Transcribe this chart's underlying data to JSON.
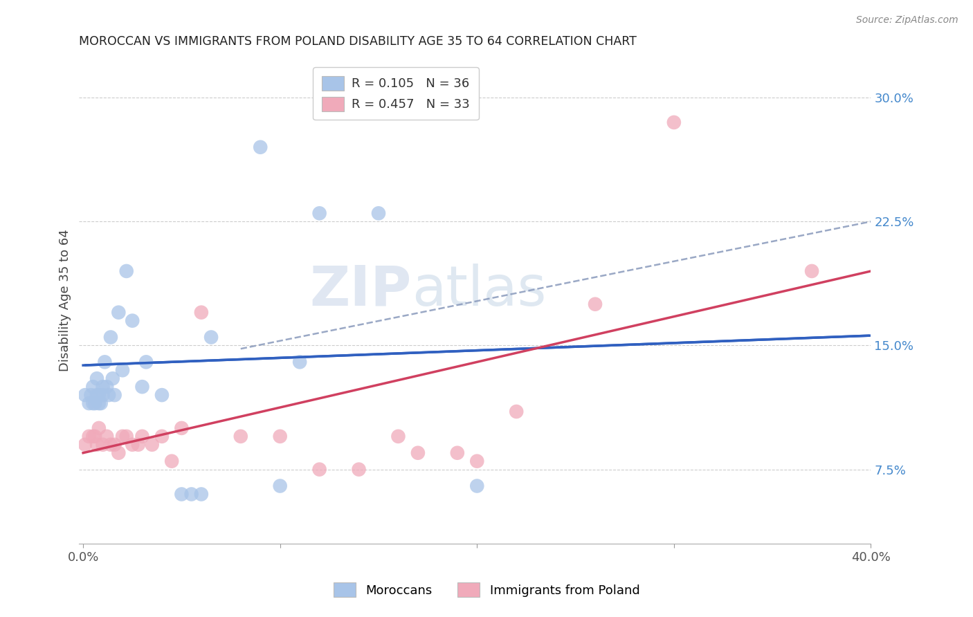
{
  "title": "MOROCCAN VS IMMIGRANTS FROM POLAND DISABILITY AGE 35 TO 64 CORRELATION CHART",
  "source": "Source: ZipAtlas.com",
  "ylabel": "Disability Age 35 to 64",
  "y_ticks_right": [
    0.075,
    0.15,
    0.225,
    0.3
  ],
  "y_tick_labels_right": [
    "7.5%",
    "15.0%",
    "22.5%",
    "30.0%"
  ],
  "xlim": [
    -0.002,
    0.4
  ],
  "ylim": [
    0.03,
    0.325
  ],
  "legend_label1": "Moroccans",
  "legend_label2": "Immigrants from Poland",
  "watermark_top": "ZIP",
  "watermark_bot": "atlas",
  "blue_color": "#a8c4e8",
  "pink_color": "#f0aaba",
  "blue_line_color": "#3060c0",
  "pink_line_color": "#d04060",
  "dashed_line_color": "#8899bb",
  "moroccan_x": [
    0.001,
    0.003,
    0.004,
    0.005,
    0.005,
    0.006,
    0.007,
    0.007,
    0.008,
    0.008,
    0.009,
    0.01,
    0.01,
    0.011,
    0.012,
    0.013,
    0.014,
    0.015,
    0.016,
    0.018,
    0.02,
    0.022,
    0.025,
    0.03,
    0.032,
    0.04,
    0.05,
    0.055,
    0.06,
    0.065,
    0.09,
    0.1,
    0.11,
    0.12,
    0.15,
    0.2
  ],
  "moroccan_y": [
    0.12,
    0.115,
    0.12,
    0.115,
    0.125,
    0.115,
    0.12,
    0.13,
    0.115,
    0.12,
    0.115,
    0.12,
    0.125,
    0.14,
    0.125,
    0.12,
    0.155,
    0.13,
    0.12,
    0.17,
    0.135,
    0.195,
    0.165,
    0.125,
    0.14,
    0.12,
    0.06,
    0.06,
    0.06,
    0.155,
    0.27,
    0.065,
    0.14,
    0.23,
    0.23,
    0.065
  ],
  "poland_x": [
    0.001,
    0.003,
    0.005,
    0.006,
    0.007,
    0.008,
    0.01,
    0.012,
    0.014,
    0.016,
    0.018,
    0.02,
    0.022,
    0.025,
    0.028,
    0.03,
    0.035,
    0.04,
    0.045,
    0.05,
    0.06,
    0.08,
    0.1,
    0.12,
    0.14,
    0.16,
    0.17,
    0.19,
    0.2,
    0.22,
    0.26,
    0.3,
    0.37
  ],
  "poland_y": [
    0.09,
    0.095,
    0.095,
    0.095,
    0.09,
    0.1,
    0.09,
    0.095,
    0.09,
    0.09,
    0.085,
    0.095,
    0.095,
    0.09,
    0.09,
    0.095,
    0.09,
    0.095,
    0.08,
    0.1,
    0.17,
    0.095,
    0.095,
    0.075,
    0.075,
    0.095,
    0.085,
    0.085,
    0.08,
    0.11,
    0.175,
    0.285,
    0.195
  ],
  "blue_line_x0": 0.0,
  "blue_line_y0": 0.138,
  "blue_line_x1": 0.4,
  "blue_line_y1": 0.156,
  "pink_line_x0": 0.0,
  "pink_line_y0": 0.085,
  "pink_line_x1": 0.4,
  "pink_line_y1": 0.195,
  "dashed_line_x0": 0.08,
  "dashed_line_y0": 0.148,
  "dashed_line_x1": 0.4,
  "dashed_line_y1": 0.225
}
